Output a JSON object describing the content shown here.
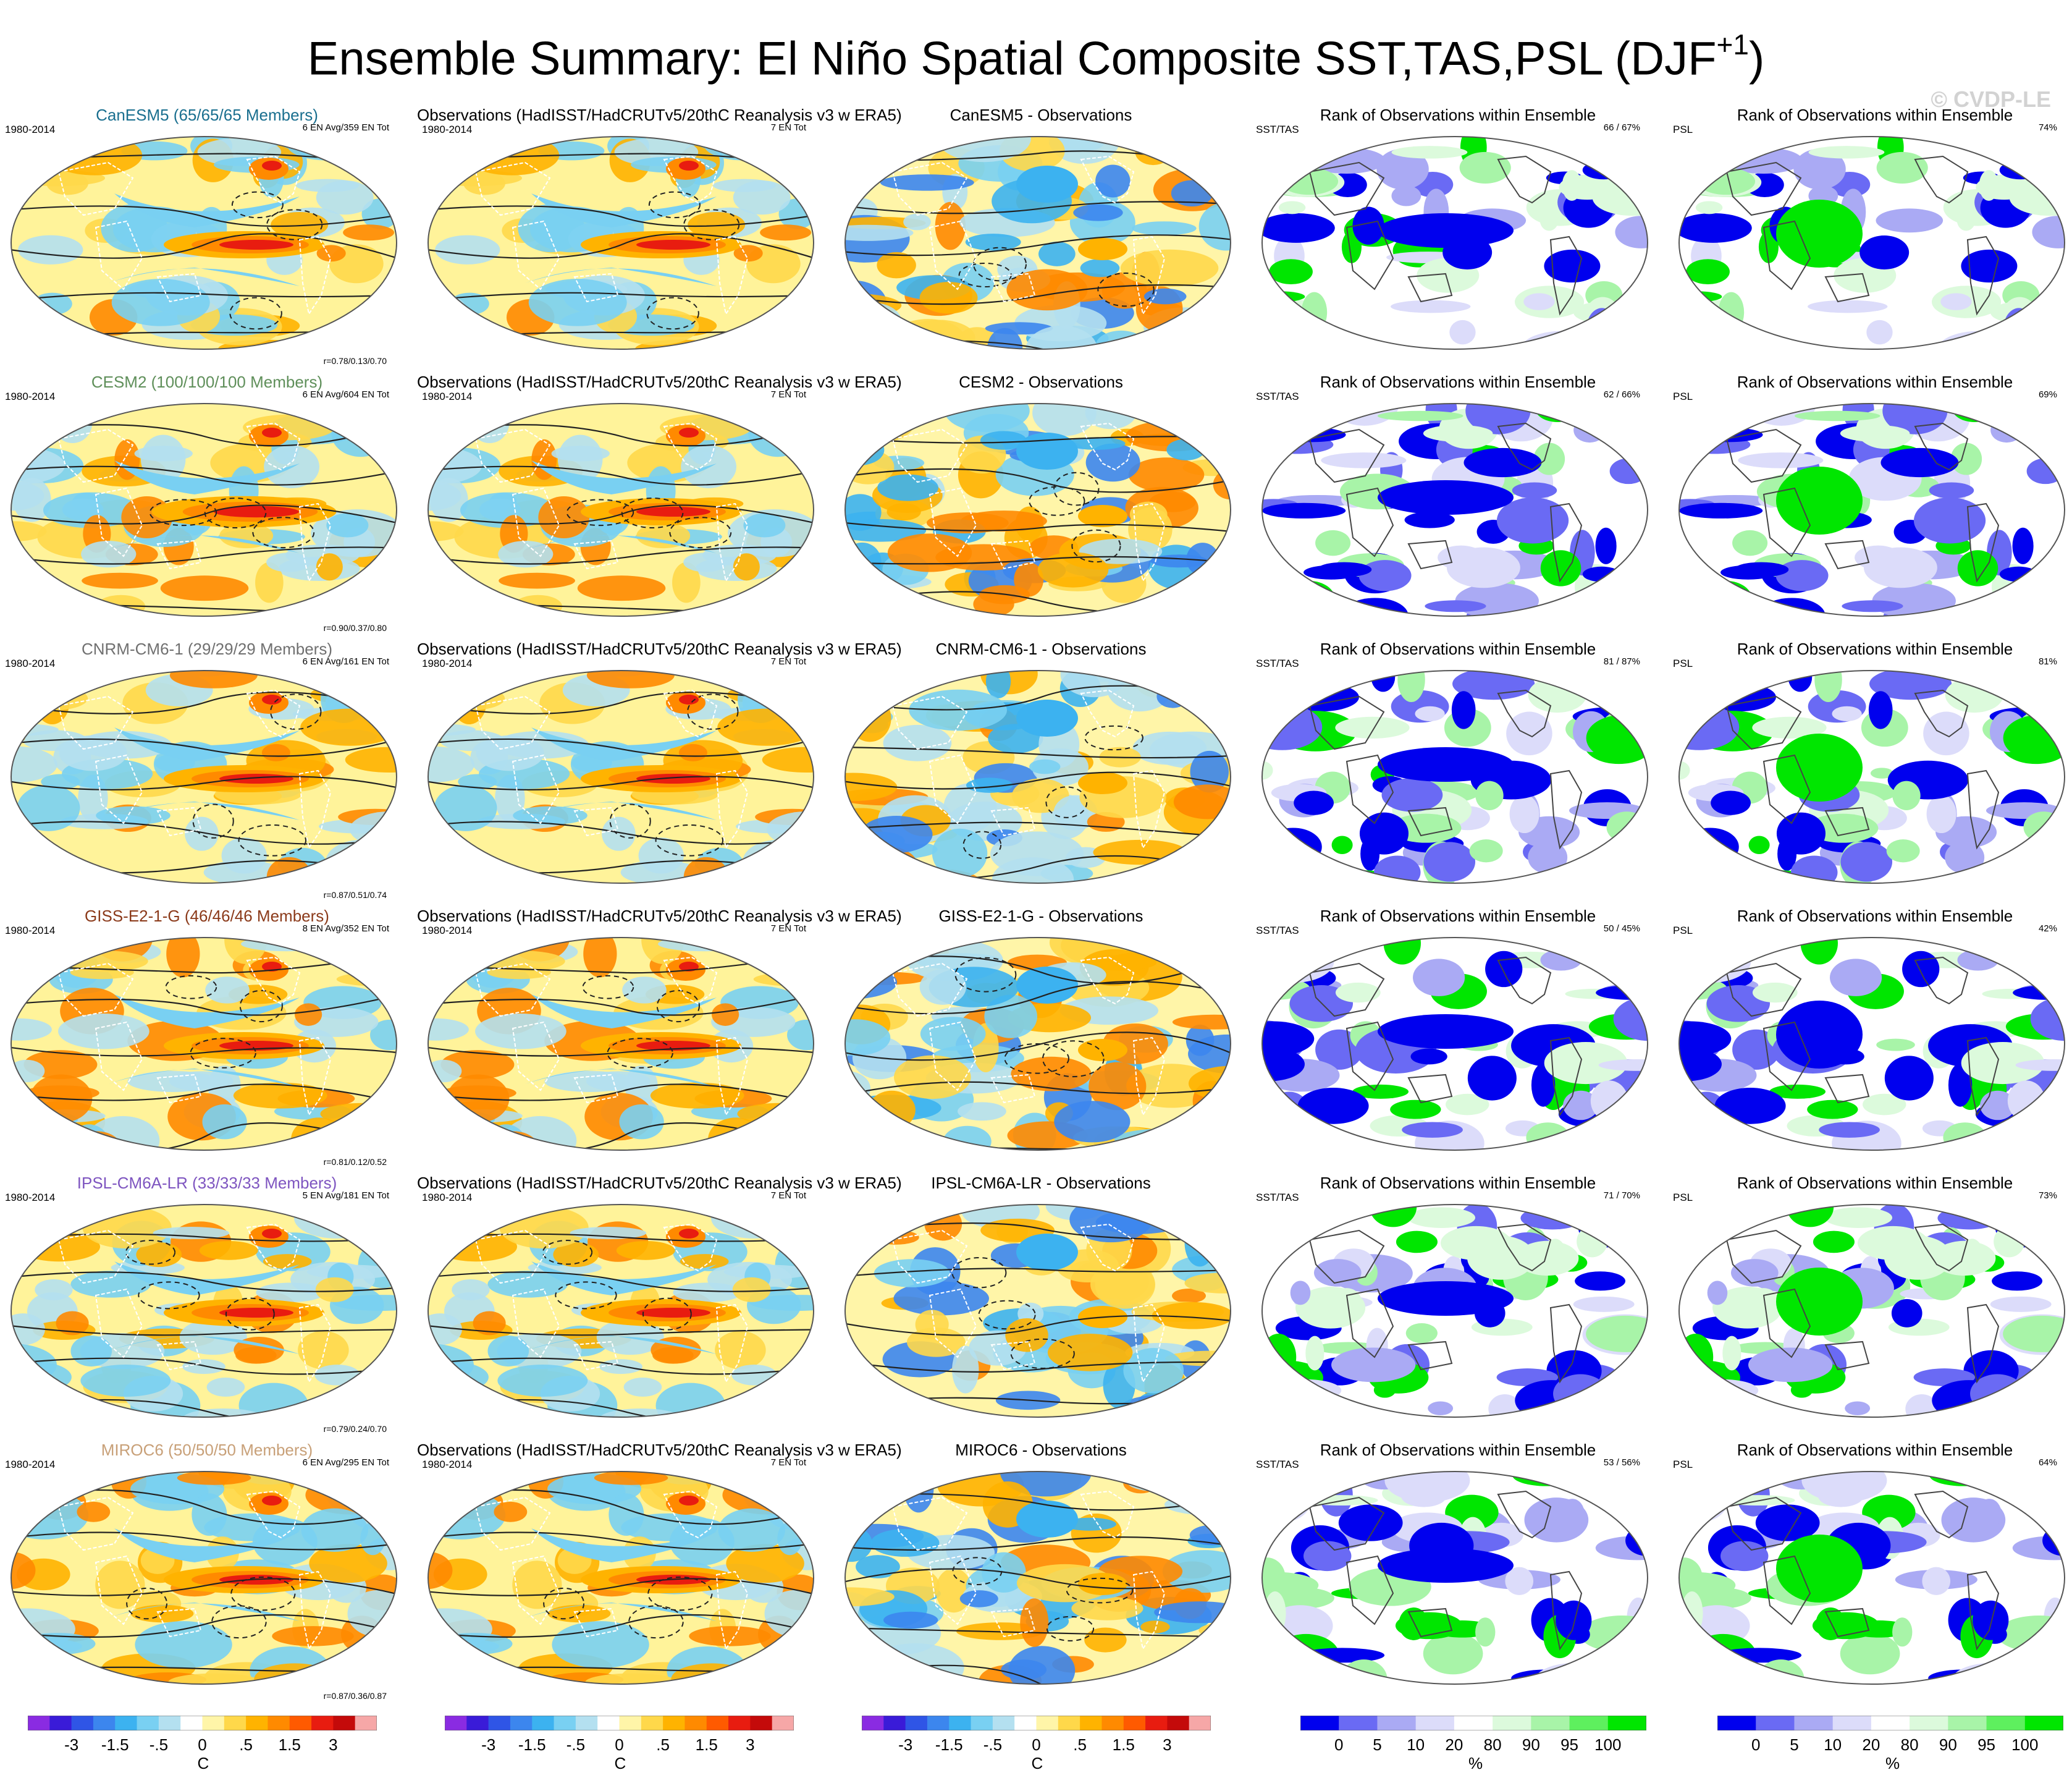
{
  "header": {
    "title": "Ensemble Summary: El Niño Spatial Composite SST,TAS,PSL (DJF",
    "title_sup": "+1",
    "title_end": ")",
    "watermark": "© CVDP-LE"
  },
  "colors": {
    "temp_scale": [
      "#8a2be2",
      "#3a1bd8",
      "#2f55e6",
      "#3c86ee",
      "#3cb2f0",
      "#79d0f2",
      "#b4e0f0",
      "#ffffff",
      "#fff5a8",
      "#ffd84a",
      "#ffb300",
      "#ff8a00",
      "#ff5a00",
      "#e81c10",
      "#c40a0a",
      "#f6a7a7"
    ],
    "rank_scale": [
      "#0000ee",
      "#6a6af4",
      "#aaaaf4",
      "#dcdcfa",
      "#ffffff",
      "#dcfadc",
      "#a8f4a8",
      "#5ef05e",
      "#00e600"
    ],
    "ens_title_colors": [
      "#1a6f8f",
      "#5f8f5a",
      "#707070",
      "#8b3a1a",
      "#7e55c0",
      "#c8a078"
    ]
  },
  "rows": [
    {
      "ensemble": {
        "title": "CanESM5 (65/65/65 Members)",
        "period": "1980-2014",
        "info": "6 EN Avg/359 EN Tot",
        "corr": "r=0.78/0.13/0.70"
      },
      "obs": {
        "title": "Observations (HadISST/HadCRUTv5/20thC Reanalysis v3 w ERA5)",
        "period": "1980-2014",
        "info": "7 EN Tot"
      },
      "diff": {
        "title": "CanESM5 - Observations"
      },
      "rank_sst": {
        "title": "Rank of Observations within Ensemble",
        "label": "SST/TAS",
        "pct": "66 / 67%"
      },
      "rank_psl": {
        "title": "Rank of Observations within Ensemble",
        "label": "PSL",
        "pct": "74%"
      }
    },
    {
      "ensemble": {
        "title": "CESM2 (100/100/100 Members)",
        "period": "1980-2014",
        "info": "6 EN Avg/604 EN Tot",
        "corr": "r=0.90/0.37/0.80"
      },
      "obs": {
        "title": "Observations (HadISST/HadCRUTv5/20thC Reanalysis v3 w ERA5)",
        "period": "1980-2014",
        "info": "7 EN Tot"
      },
      "diff": {
        "title": "CESM2 - Observations"
      },
      "rank_sst": {
        "title": "Rank of Observations within Ensemble",
        "label": "SST/TAS",
        "pct": "62 / 66%"
      },
      "rank_psl": {
        "title": "Rank of Observations within Ensemble",
        "label": "PSL",
        "pct": "69%"
      }
    },
    {
      "ensemble": {
        "title": "CNRM-CM6-1 (29/29/29 Members)",
        "period": "1980-2014",
        "info": "6 EN Avg/161 EN Tot",
        "corr": "r=0.87/0.51/0.74"
      },
      "obs": {
        "title": "Observations (HadISST/HadCRUTv5/20thC Reanalysis v3 w ERA5)",
        "period": "1980-2014",
        "info": "7 EN Tot"
      },
      "diff": {
        "title": "CNRM-CM6-1 - Observations"
      },
      "rank_sst": {
        "title": "Rank of Observations within Ensemble",
        "label": "SST/TAS",
        "pct": "81 / 87%"
      },
      "rank_psl": {
        "title": "Rank of Observations within Ensemble",
        "label": "PSL",
        "pct": "81%"
      }
    },
    {
      "ensemble": {
        "title": "GISS-E2-1-G (46/46/46 Members)",
        "period": "1980-2014",
        "info": "8 EN Avg/352 EN Tot",
        "corr": "r=0.81/0.12/0.52"
      },
      "obs": {
        "title": "Observations (HadISST/HadCRUTv5/20thC Reanalysis v3 w ERA5)",
        "period": "1980-2014",
        "info": "7 EN Tot"
      },
      "diff": {
        "title": "GISS-E2-1-G - Observations"
      },
      "rank_sst": {
        "title": "Rank of Observations within Ensemble",
        "label": "SST/TAS",
        "pct": "50 / 45%"
      },
      "rank_psl": {
        "title": "Rank of Observations within Ensemble",
        "label": "PSL",
        "pct": "42%"
      }
    },
    {
      "ensemble": {
        "title": "IPSL-CM6A-LR (33/33/33 Members)",
        "period": "1980-2014",
        "info": "5 EN Avg/181 EN Tot",
        "corr": "r=0.79/0.24/0.70"
      },
      "obs": {
        "title": "Observations (HadISST/HadCRUTv5/20thC Reanalysis v3 w ERA5)",
        "period": "1980-2014",
        "info": "7 EN Tot"
      },
      "diff": {
        "title": "IPSL-CM6A-LR - Observations"
      },
      "rank_sst": {
        "title": "Rank of Observations within Ensemble",
        "label": "SST/TAS",
        "pct": "71 / 70%"
      },
      "rank_psl": {
        "title": "Rank of Observations within Ensemble",
        "label": "PSL",
        "pct": "73%"
      }
    },
    {
      "ensemble": {
        "title": "MIROC6 (50/50/50 Members)",
        "period": "1980-2014",
        "info": "6 EN Avg/295 EN Tot",
        "corr": "r=0.87/0.36/0.87"
      },
      "obs": {
        "title": "Observations (HadISST/HadCRUTv5/20thC Reanalysis v3 w ERA5)",
        "period": "1980-2014",
        "info": "7 EN Tot"
      },
      "diff": {
        "title": "MIROC6 - Observations"
      },
      "rank_sst": {
        "title": "Rank of Observations within Ensemble",
        "label": "SST/TAS",
        "pct": "53 / 56%"
      },
      "rank_psl": {
        "title": "Rank of Observations within Ensemble",
        "label": "PSL",
        "pct": "64%"
      }
    }
  ],
  "chart_data": {
    "type": "heatmap",
    "projection": "global map panels (6 rows x 5 columns)",
    "columns": [
      "Ensemble mean composite",
      "Observations",
      "Ensemble - Observations",
      "Rank SST/TAS",
      "Rank PSL"
    ],
    "colorbars": [
      {
        "unit": "C",
        "labels": [
          "-3",
          "-1.5",
          "-.5",
          "0",
          ".5",
          "1.5",
          "3"
        ]
      },
      {
        "unit": "C",
        "labels": [
          "-3",
          "-1.5",
          "-.5",
          "0",
          ".5",
          "1.5",
          "3"
        ]
      },
      {
        "unit": "C",
        "labels": [
          "-3",
          "-1.5",
          "-.5",
          "0",
          ".5",
          "1.5",
          "3"
        ]
      },
      {
        "unit": "%",
        "labels": [
          "0",
          "5",
          "10",
          "20",
          "80",
          "90",
          "95",
          "100"
        ]
      },
      {
        "unit": "%",
        "labels": [
          "0",
          "5",
          "10",
          "20",
          "80",
          "90",
          "95",
          "100"
        ]
      }
    ]
  }
}
